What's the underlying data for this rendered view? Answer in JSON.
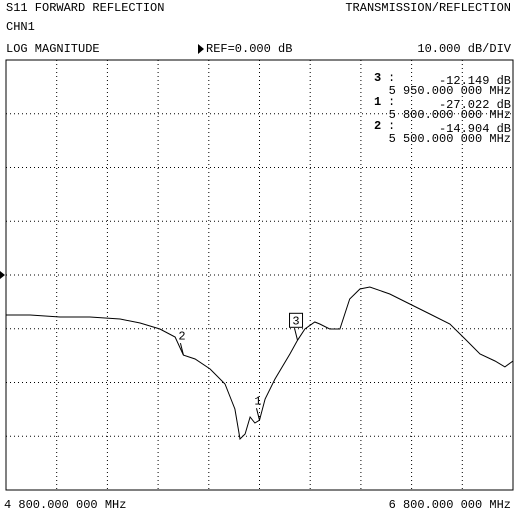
{
  "chart_data": {
    "type": "line",
    "title": "S11 FORWARD REFLECTION",
    "subtitle": "TRANSMISSION/REFLECTION",
    "channel": "CHN1",
    "format": "LOG MAGNITUDE",
    "reference": "REF=0.000 dB",
    "reference_value": 0,
    "scale": "10.000 dB/DIV",
    "color": "#000000",
    "x": [
      4800,
      4895,
      5013,
      5131,
      5250,
      5329,
      5407,
      5467,
      5500,
      5546,
      5605,
      5664,
      5703,
      5723,
      5743,
      5763,
      5782,
      5800,
      5822,
      5861,
      5920,
      5950,
      5979,
      6018,
      6038,
      6077,
      6117,
      6156,
      6196,
      6235,
      6314,
      6393,
      6472,
      6551,
      6611,
      6670,
      6729,
      6768,
      6800
    ],
    "values": [
      -7.44,
      -7.44,
      -7.81,
      -7.81,
      -8.19,
      -8.93,
      -10.05,
      -11.53,
      -14.9,
      -15.63,
      -17.49,
      -20.28,
      -24.93,
      -30.51,
      -29.58,
      -26.42,
      -27.53,
      -27.022,
      -23.07,
      -19.35,
      -14.7,
      -12.149,
      -10.05,
      -8.74,
      -9.12,
      -10.05,
      -10.05,
      -4.47,
      -2.6,
      -2.23,
      -3.53,
      -5.4,
      -7.26,
      -9.12,
      -11.9,
      -14.7,
      -16.0,
      -17.1,
      -16.0
    ],
    "xlim": [
      4800,
      6800
    ],
    "ylim": [
      -40,
      40
    ],
    "xticks": [
      {
        "value": 4800,
        "label": "4 800.000 000 MHz"
      },
      {
        "value": 6800,
        "label": "6 800.000 000 MHz"
      }
    ],
    "xgrid": [
      5000,
      5200,
      5400,
      5600,
      5800,
      6000,
      6200,
      6400,
      6600
    ],
    "ygrid": [
      -30,
      -20,
      -10,
      0,
      10,
      20,
      30
    ],
    "markers": [
      {
        "name": "3",
        "value": -12.149,
        "value_label": "-12.149 dB",
        "x": 5950,
        "x_label": "5 950.000 000 MHz",
        "active": true
      },
      {
        "name": "1",
        "value": -27.022,
        "value_label": "-27.022 dB",
        "x": 5800,
        "x_label": "5 800.000 000 MHz",
        "active": false
      },
      {
        "name": "2",
        "value": -14.904,
        "value_label": "-14.904 dB",
        "x": 5500,
        "x_label": "5 500.000 000 MHz",
        "active": false
      }
    ]
  }
}
